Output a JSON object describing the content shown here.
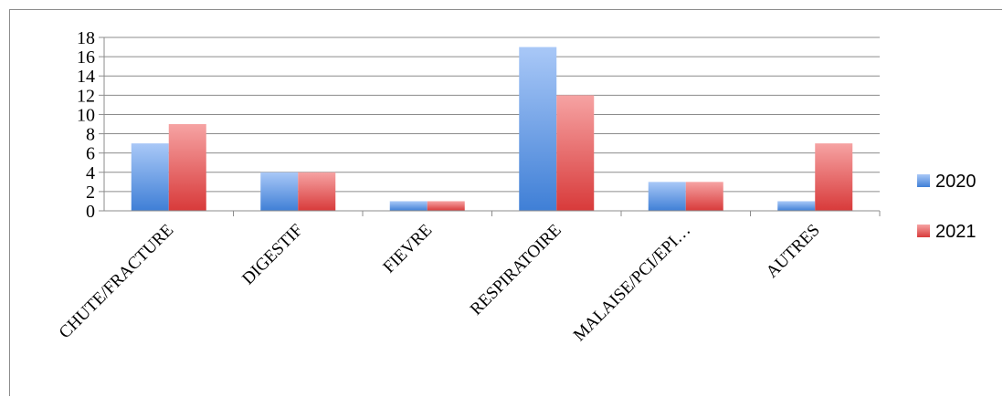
{
  "chart_data": {
    "type": "bar",
    "title": "",
    "xlabel": "",
    "ylabel": "",
    "categories": [
      "CHUTE/FRACTURE",
      "DIGESTIF",
      "FIEVRE",
      "RESPIRATOIRE",
      "MALAISE/PCI/EPI…",
      "AUTRES"
    ],
    "series": [
      {
        "name": "2020",
        "values": [
          7,
          4,
          1,
          17,
          3,
          1
        ],
        "color": "#4f8fe0"
      },
      {
        "name": "2021",
        "values": [
          9,
          4,
          1,
          12,
          3,
          7
        ],
        "color": "#e05a5a"
      }
    ],
    "ylim": [
      0,
      18
    ],
    "yticks": [
      "0",
      "2",
      "4",
      "6",
      "8",
      "10",
      "12",
      "14",
      "16",
      "18"
    ],
    "grid": true,
    "legend": "right"
  }
}
